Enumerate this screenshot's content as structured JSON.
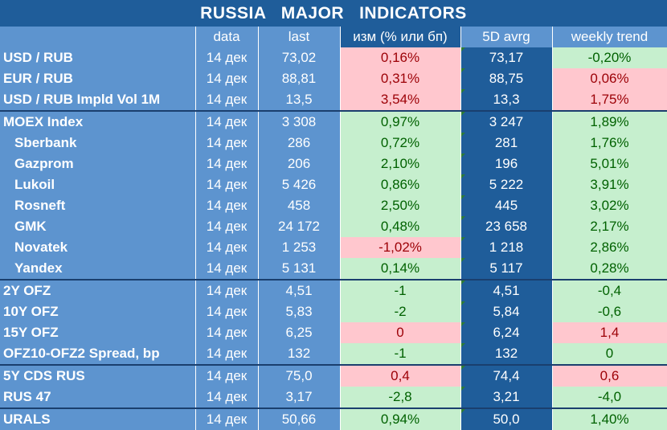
{
  "title": "RUSSIA   MAJOR   INDICATORS",
  "columns": [
    "",
    "data",
    "last",
    "изм (% или бп)",
    "5D avrg",
    "weekly trend"
  ],
  "colors": {
    "header_dark": "#1f5d9a",
    "header_light": "#5d94cf",
    "positive_fill": "#c6efce",
    "positive_text": "#006100",
    "negative_fill": "#ffc7ce",
    "negative_text": "#9c0006"
  },
  "rows": [
    {
      "name": "USD / RUB",
      "date": "14 дек",
      "last": "73,02",
      "chg": "0,16%",
      "avg": "73,17",
      "trend": "-0,20%",
      "chg_state": "neg",
      "trend_state": "pos",
      "indent": false,
      "group_start": false
    },
    {
      "name": "EUR / RUB",
      "date": "14 дек",
      "last": "88,81",
      "chg": "0,31%",
      "avg": "88,75",
      "trend": "0,06%",
      "chg_state": "neg",
      "trend_state": "neg",
      "indent": false,
      "group_start": false
    },
    {
      "name": "USD / RUB Impld Vol 1M",
      "date": "14 дек",
      "last": "13,5",
      "chg": "3,54%",
      "avg": "13,3",
      "trend": "1,75%",
      "chg_state": "neg",
      "trend_state": "neg",
      "indent": false,
      "group_start": false
    },
    {
      "name": "MOEX Index",
      "date": "14 дек",
      "last": "3 308",
      "chg": "0,97%",
      "avg": "3 247",
      "trend": "1,89%",
      "chg_state": "pos",
      "trend_state": "pos",
      "indent": false,
      "group_start": true
    },
    {
      "name": "Sberbank",
      "date": "14 дек",
      "last": "286",
      "chg": "0,72%",
      "avg": "281",
      "trend": "1,76%",
      "chg_state": "pos",
      "trend_state": "pos",
      "indent": true,
      "group_start": false
    },
    {
      "name": "Gazprom",
      "date": "14 дек",
      "last": "206",
      "chg": "2,10%",
      "avg": "196",
      "trend": "5,01%",
      "chg_state": "pos",
      "trend_state": "pos",
      "indent": true,
      "group_start": false
    },
    {
      "name": "Lukoil",
      "date": "14 дек",
      "last": "5 426",
      "chg": "0,86%",
      "avg": "5 222",
      "trend": "3,91%",
      "chg_state": "pos",
      "trend_state": "pos",
      "indent": true,
      "group_start": false
    },
    {
      "name": "Rosneft",
      "date": "14 дек",
      "last": "458",
      "chg": "2,50%",
      "avg": "445",
      "trend": "3,02%",
      "chg_state": "pos",
      "trend_state": "pos",
      "indent": true,
      "group_start": false
    },
    {
      "name": "GMK",
      "date": "14 дек",
      "last": "24 172",
      "chg": "0,48%",
      "avg": "23 658",
      "trend": "2,17%",
      "chg_state": "pos",
      "trend_state": "pos",
      "indent": true,
      "group_start": false
    },
    {
      "name": "Novatek",
      "date": "14 дек",
      "last": "1 253",
      "chg": "-1,02%",
      "avg": "1 218",
      "trend": "2,86%",
      "chg_state": "neg",
      "trend_state": "pos",
      "indent": true,
      "group_start": false
    },
    {
      "name": "Yandex",
      "date": "14 дек",
      "last": "5 131",
      "chg": "0,14%",
      "avg": "5 117",
      "trend": "0,28%",
      "chg_state": "pos",
      "trend_state": "pos",
      "indent": true,
      "group_start": false
    },
    {
      "name": "2Y OFZ",
      "date": "14 дек",
      "last": "4,51",
      "chg": "-1",
      "avg": "4,51",
      "trend": "-0,4",
      "chg_state": "pos",
      "trend_state": "pos",
      "indent": false,
      "group_start": true
    },
    {
      "name": "10Y OFZ",
      "date": "14 дек",
      "last": "5,83",
      "chg": "-2",
      "avg": "5,84",
      "trend": "-0,6",
      "chg_state": "pos",
      "trend_state": "pos",
      "indent": false,
      "group_start": false
    },
    {
      "name": "15Y OFZ",
      "date": "14 дек",
      "last": "6,25",
      "chg": "0",
      "avg": "6,24",
      "trend": "1,4",
      "chg_state": "neg",
      "trend_state": "neg",
      "indent": false,
      "group_start": false
    },
    {
      "name": "OFZ10-OFZ2 Spread, bp",
      "date": "14 дек",
      "last": "132",
      "chg": "-1",
      "avg": "132",
      "trend": "0",
      "chg_state": "pos",
      "trend_state": "pos",
      "indent": false,
      "group_start": false
    },
    {
      "name": "5Y CDS RUS",
      "date": "14 дек",
      "last": "75,0",
      "chg": "0,4",
      "avg": "74,4",
      "trend": "0,6",
      "chg_state": "neg",
      "trend_state": "neg",
      "indent": false,
      "group_start": true
    },
    {
      "name": "RUS 47",
      "date": "14 дек",
      "last": "3,17",
      "chg": "-2,8",
      "avg": "3,21",
      "trend": "-4,0",
      "chg_state": "pos",
      "trend_state": "pos",
      "indent": false,
      "group_start": false
    },
    {
      "name": "URALS",
      "date": "14 дек",
      "last": "50,66",
      "chg": "0,94%",
      "avg": "50,0",
      "trend": "1,40%",
      "chg_state": "pos",
      "trend_state": "pos",
      "indent": false,
      "group_start": true
    }
  ]
}
